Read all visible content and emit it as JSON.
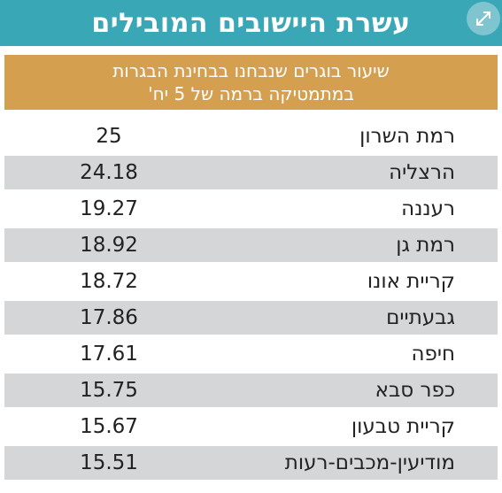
{
  "chart_data": {
    "type": "table",
    "title": "עשרת היישובים המובילים",
    "subtitle_lines": [
      "שיעור בוגרים שנבחנו בבחינת הבגרות",
      "במתמטיקה ברמה של 5 יח'"
    ],
    "rows": [
      {
        "city": "רמת השרון",
        "value": "25"
      },
      {
        "city": "הרצליה",
        "value": "24.18"
      },
      {
        "city": "רעננה",
        "value": "19.27"
      },
      {
        "city": "רמת גן",
        "value": "18.92"
      },
      {
        "city": "קריית אונו",
        "value": "18.72"
      },
      {
        "city": "גבעתיים",
        "value": "17.86"
      },
      {
        "city": "חיפה",
        "value": "17.61"
      },
      {
        "city": "כפר סבא",
        "value": "15.75"
      },
      {
        "city": "קריית טבעון",
        "value": "15.67"
      },
      {
        "city": "מודיעין-מכבים-רעות",
        "value": "15.51"
      }
    ]
  },
  "colors": {
    "title_bg": "#3aa7b6",
    "subtitle_bg": "#d4a050",
    "row_shade": "#d5d6d8"
  },
  "icons": {
    "expand": "expand-arrows-icon"
  }
}
